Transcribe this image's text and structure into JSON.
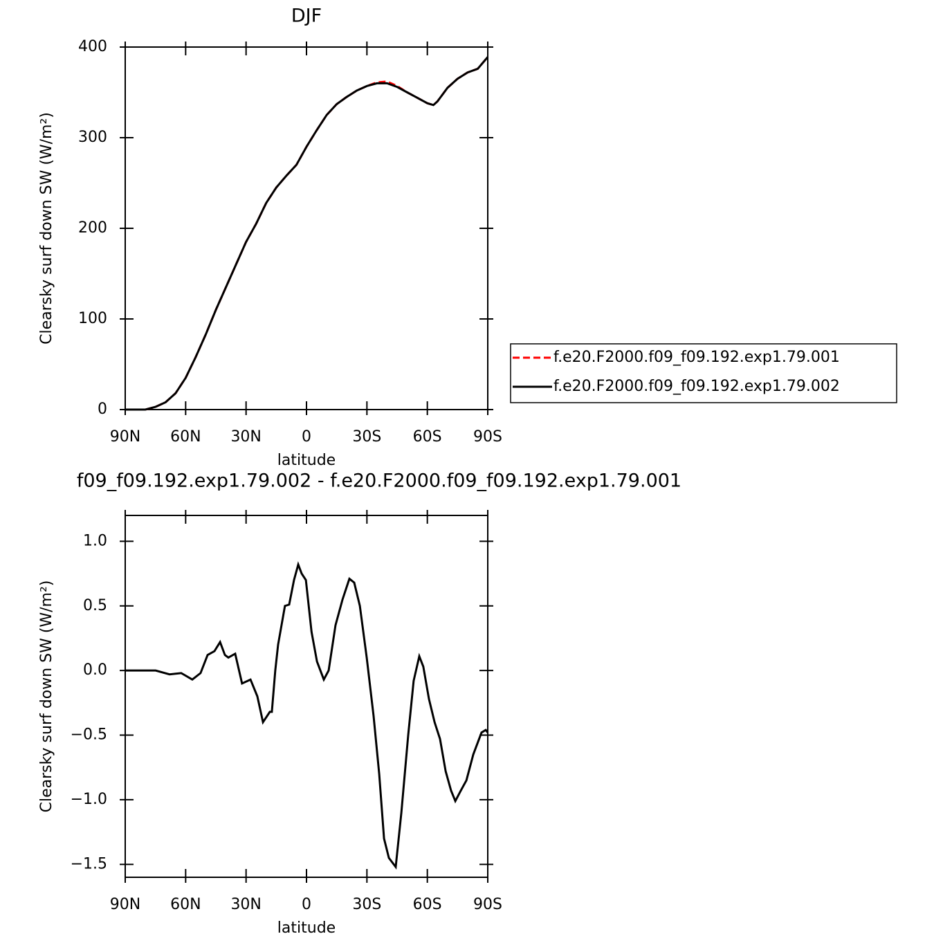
{
  "chart_data": [
    {
      "type": "line",
      "title": "DJF",
      "x_label": "latitude",
      "y_label": "Clearsky surf down SW (W/m²)",
      "xlim": [
        90,
        -90
      ],
      "xticks": [
        {
          "value": 90,
          "label": "90N"
        },
        {
          "value": 60,
          "label": "60N"
        },
        {
          "value": 30,
          "label": "30N"
        },
        0,
        {
          "value": -30,
          "label": "30S"
        },
        {
          "value": -60,
          "label": "60S"
        },
        {
          "value": -90,
          "label": "90S"
        }
      ],
      "ylim": [
        0,
        400
      ],
      "yticks": [
        0,
        100,
        200,
        300,
        400
      ],
      "legend": "right",
      "x": [
        90,
        80,
        75,
        70,
        65,
        60,
        55,
        50,
        45,
        40,
        35,
        30,
        25,
        20,
        15,
        10,
        5,
        0,
        -5,
        -10,
        -15,
        -20,
        -25,
        -30,
        -35,
        -40,
        -45,
        -50,
        -55,
        -60,
        -63,
        -65,
        -70,
        -75,
        -80,
        -85,
        -90
      ],
      "series": [
        {
          "name": "f.e20.F2000.f09_f09.192.exp1.79.001",
          "color": "#ff0000",
          "dash": true,
          "values": [
            0,
            0,
            3,
            8,
            18,
            35,
            58,
            83,
            110,
            135,
            160,
            185,
            205,
            228,
            245,
            258,
            270,
            290,
            308,
            325,
            337,
            345,
            352,
            357,
            361,
            362,
            357,
            350,
            344,
            338,
            336,
            340,
            355,
            365,
            372,
            376,
            389
          ]
        },
        {
          "name": "f.e20.F2000.f09_f09.192.exp1.79.002",
          "color": "#000000",
          "dash": false,
          "values": [
            0,
            0,
            3,
            8,
            18,
            35,
            58,
            83,
            110,
            135,
            160,
            185,
            205,
            228,
            245,
            258,
            270,
            290,
            308,
            325,
            337,
            345,
            352,
            357,
            360,
            360,
            356,
            350,
            344,
            338,
            336,
            340,
            355,
            365,
            372,
            376,
            389
          ]
        }
      ]
    },
    {
      "type": "line",
      "title": "f09_f09.192.exp1.79.002 - f.e20.F2000.f09_f09.192.exp1.79.001",
      "x_label": "latitude",
      "y_label": "Clearsky surf down SW (W/m²)",
      "xlim": [
        90,
        -90
      ],
      "xticks": [
        {
          "value": 90,
          "label": "90N"
        },
        {
          "value": 60,
          "label": "60N"
        },
        {
          "value": 30,
          "label": "30N"
        },
        0,
        {
          "value": -30,
          "label": "30S"
        },
        {
          "value": -60,
          "label": "60S"
        },
        {
          "value": -90,
          "label": "90S"
        }
      ],
      "ylim": [
        -1.6,
        1.2
      ],
      "yticks": [
        {
          "value": -1.5,
          "label": "−1.5"
        },
        {
          "value": -1,
          "label": "−1.0"
        },
        {
          "value": -0.5,
          "label": "−0.5"
        },
        {
          "value": 0,
          "label": "0.0"
        },
        {
          "value": 0.5,
          "label": "0.5"
        },
        {
          "value": 1,
          "label": "1.0"
        }
      ],
      "x": [
        90,
        80,
        74.9,
        68,
        62.2,
        56.7,
        52.6,
        49.1,
        45.7,
        42.9,
        40.5,
        38.8,
        35.4,
        32,
        27.8,
        24.4,
        21.6,
        18.2,
        17.2,
        15.5,
        14.1,
        10.7,
        8.6,
        6.2,
        4.1,
        2.4,
        0.3,
        -2.5,
        -5.2,
        -8.6,
        -11,
        -14.4,
        -17.9,
        -21.3,
        -23.7,
        -26.5,
        -29.9,
        -33.3,
        -36.1,
        -38.5,
        -40.9,
        -44.3,
        -47.1,
        -50.5,
        -53.2,
        -56,
        -58,
        -60.8,
        -63.6,
        -66.3,
        -69.1,
        -71.8,
        -73.9,
        -76.6,
        -79.4,
        -82.8,
        -86.9,
        -89,
        -90
      ],
      "series": [
        {
          "color": "#000000",
          "dash": false,
          "values": [
            0,
            0,
            0,
            -0.03,
            -0.02,
            -0.07,
            -0.02,
            0.12,
            0.15,
            0.22,
            0.12,
            0.1,
            0.13,
            -0.1,
            -0.07,
            -0.2,
            -0.4,
            -0.32,
            -0.32,
            0,
            0.2,
            0.5,
            0.51,
            0.7,
            0.82,
            0.75,
            0.7,
            0.3,
            0.07,
            -0.07,
            0,
            0.35,
            0.55,
            0.71,
            0.68,
            0.5,
            0.1,
            -0.35,
            -0.8,
            -1.3,
            -1.45,
            -1.52,
            -1.1,
            -0.5,
            -0.08,
            0.11,
            0.03,
            -0.22,
            -0.4,
            -0.53,
            -0.78,
            -0.93,
            -1.01,
            -0.93,
            -0.85,
            -0.65,
            -0.48,
            -0.46,
            -0.48
          ]
        }
      ]
    }
  ]
}
